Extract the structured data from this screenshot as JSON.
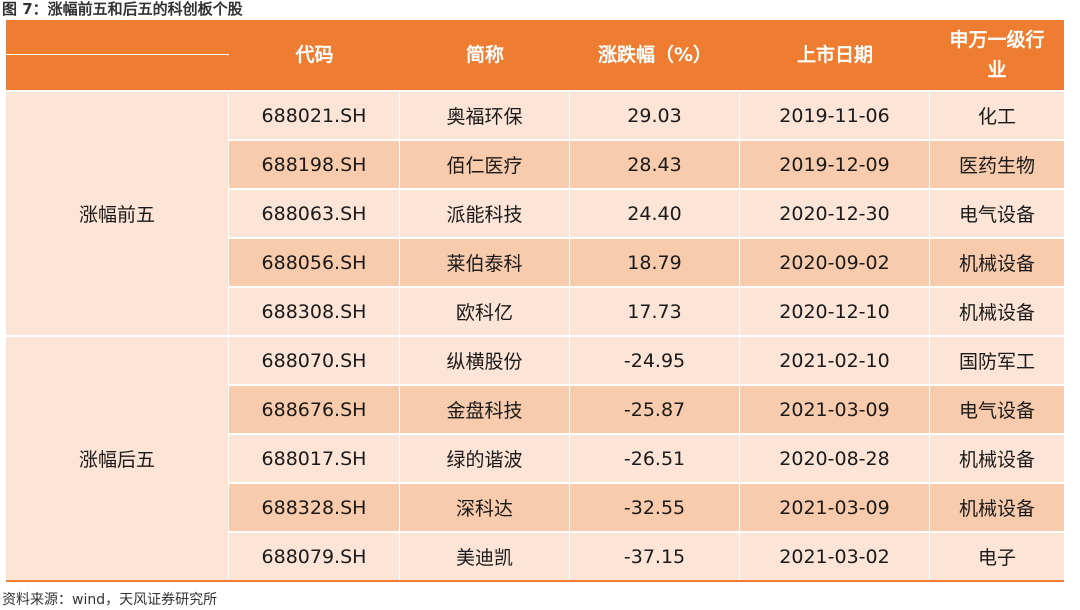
{
  "title": "图 7：涨幅前五和后五的科创板个股",
  "source": "资料来源：wind，天风证券研究所",
  "colors": {
    "header": "#ee7d31",
    "row_light": "#fce4d6",
    "row_dark": "#f8cbad"
  },
  "header": [
    "代码",
    "简称",
    "涨跌幅（%）",
    "上市日期",
    "申万一级行业"
  ],
  "groups": [
    {
      "label": "涨幅前五",
      "rows": [
        [
          "688021.SH",
          "奥福环保",
          "29.03",
          "2019-11-06",
          "化工"
        ],
        [
          "688198.SH",
          "佰仁医疗",
          "28.43",
          "2019-12-09",
          "医药生物"
        ],
        [
          "688063.SH",
          "派能科技",
          "24.40",
          "2020-12-30",
          "电气设备"
        ],
        [
          "688056.SH",
          "莱伯泰科",
          "18.79",
          "2020-09-02",
          "机械设备"
        ],
        [
          "688308.SH",
          "欧科亿",
          "17.73",
          "2020-12-10",
          "机械设备"
        ]
      ]
    },
    {
      "label": "涨幅后五",
      "rows": [
        [
          "688070.SH",
          "纵横股份",
          "-24.95",
          "2021-02-10",
          "国防军工"
        ],
        [
          "688676.SH",
          "金盘科技",
          "-25.87",
          "2021-03-09",
          "电气设备"
        ],
        [
          "688017.SH",
          "绿的谐波",
          "-26.51",
          "2020-08-28",
          "机械设备"
        ],
        [
          "688328.SH",
          "深科达",
          "-32.55",
          "2021-03-09",
          "机械设备"
        ],
        [
          "688079.SH",
          "美迪凯",
          "-37.15",
          "2021-03-02",
          "电子"
        ]
      ]
    }
  ]
}
